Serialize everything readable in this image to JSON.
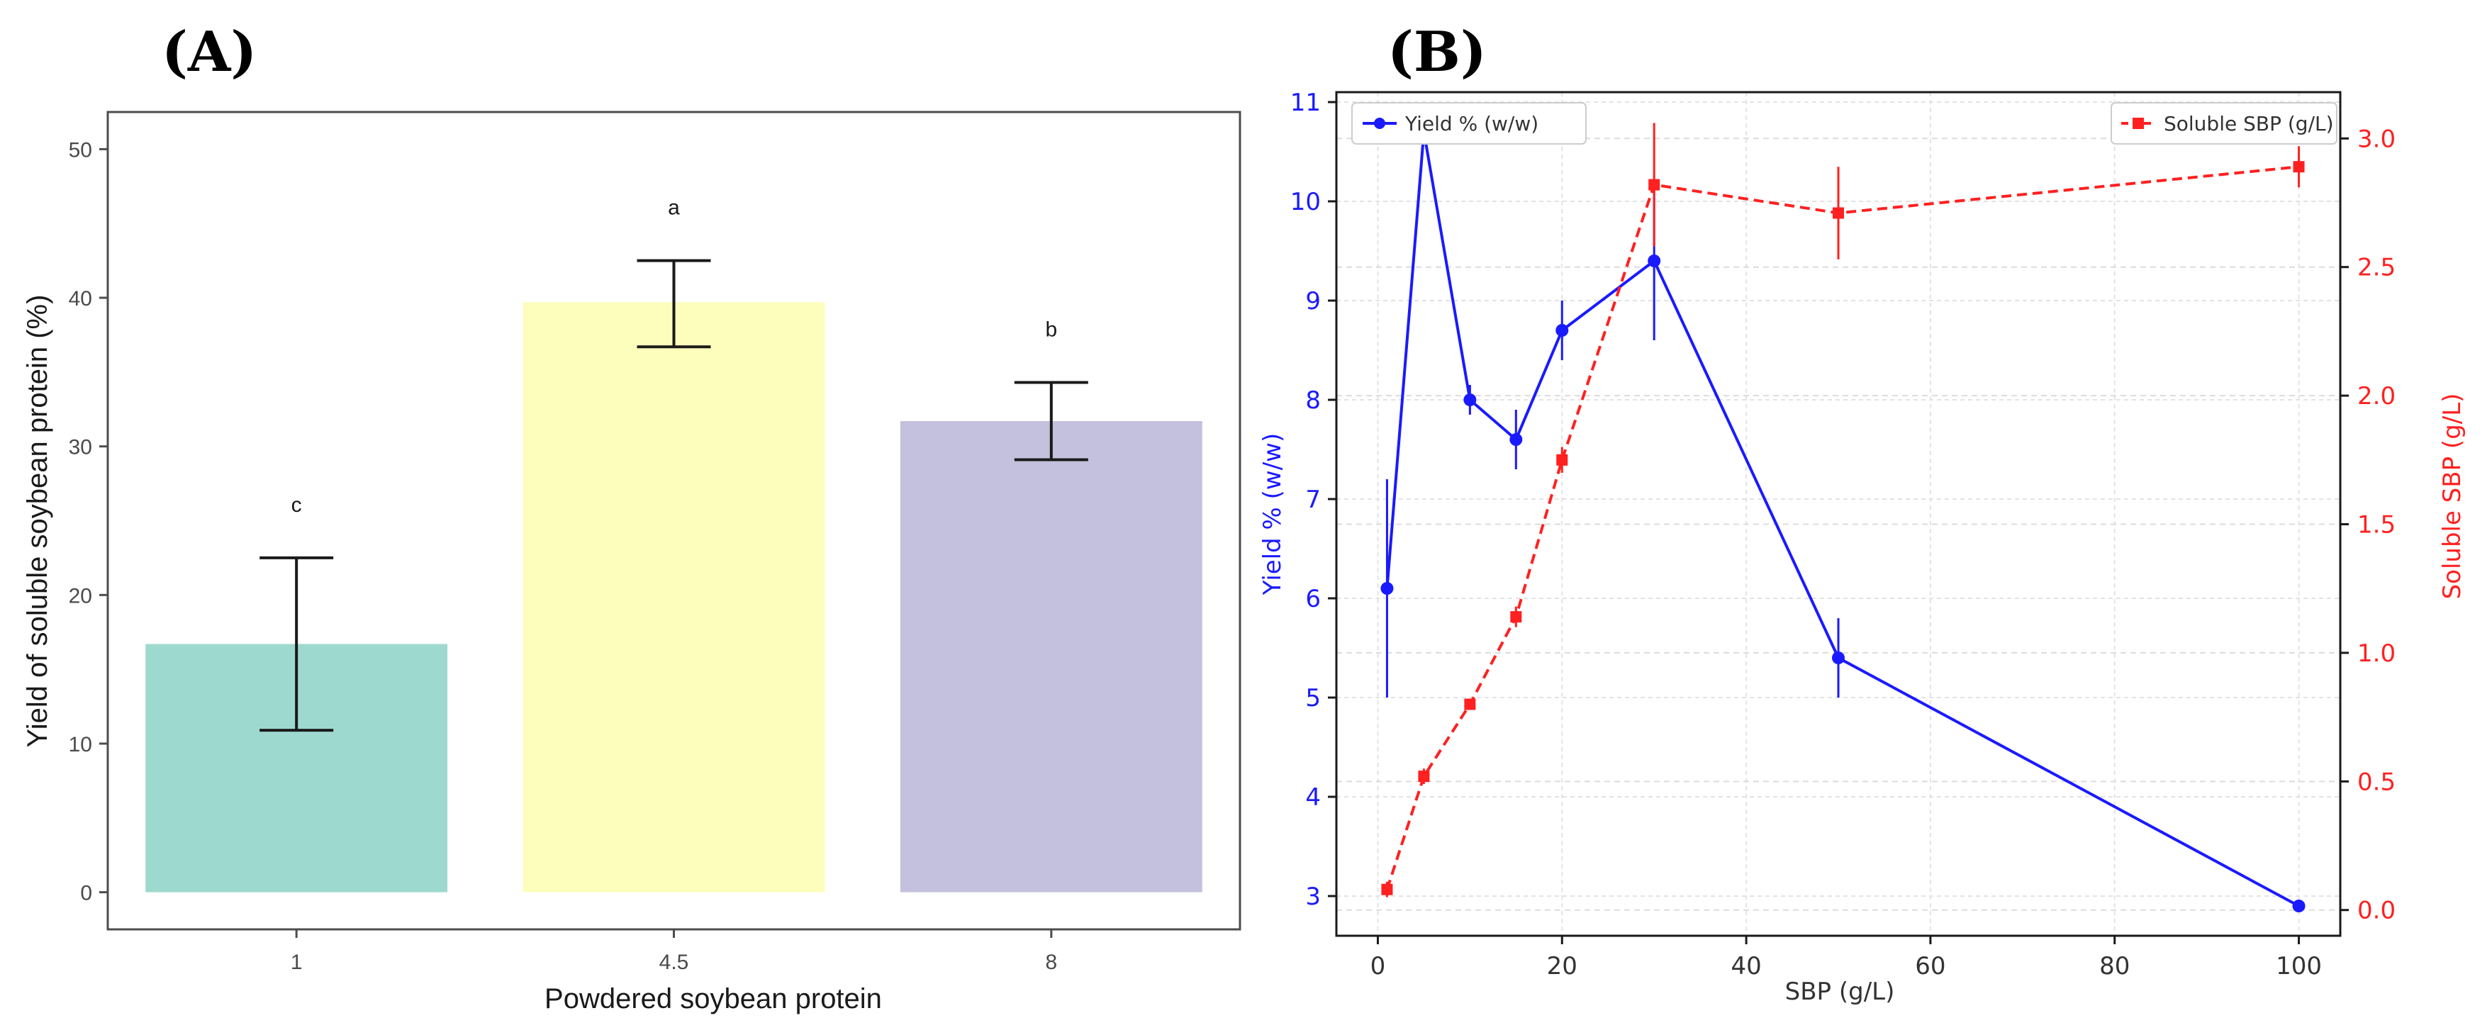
{
  "panels": {
    "a_label": "(A)",
    "b_label": "(B)"
  },
  "chart_data": [
    {
      "id": "A",
      "type": "bar",
      "title": "",
      "xlabel": "Powdered soybean protein",
      "ylabel": "Yield of soluble soybean protein (%)",
      "categories": [
        "1",
        "4.5",
        "8"
      ],
      "values": [
        16.7,
        39.7,
        31.7
      ],
      "error_low": [
        10.9,
        36.7,
        29.1
      ],
      "error_high": [
        22.5,
        42.5,
        34.3
      ],
      "letters": [
        "c",
        "a",
        "b"
      ],
      "colors": [
        "#9dd9ce",
        "#fdfdbc",
        "#c3c1dd"
      ],
      "ylim": [
        -2.5,
        52.5
      ],
      "yticks": [
        0,
        10,
        20,
        30,
        40,
        50
      ],
      "ytick_labels": [
        "0",
        "10",
        "20",
        "30",
        "40",
        "50"
      ],
      "grid": false
    },
    {
      "id": "B",
      "type": "line",
      "title": "",
      "xlabel": "SBP (g/L)",
      "xlim": [
        -4.5,
        104.5
      ],
      "xticks": [
        0,
        20,
        40,
        60,
        80,
        100
      ],
      "xtick_labels": [
        "0",
        "20",
        "40",
        "60",
        "80",
        "100"
      ],
      "grid": true,
      "series": [
        {
          "name": "Yield % (w/w)",
          "axis": "left",
          "color": "#1a1aff",
          "style": "solid",
          "marker": "circle",
          "x": [
            1,
            5,
            10,
            15,
            20,
            30,
            50,
            100
          ],
          "y": [
            6.1,
            10.7,
            8.0,
            7.6,
            8.7,
            9.4,
            5.4,
            2.9
          ],
          "err": [
            1.1,
            0.1,
            0.15,
            0.3,
            0.3,
            0.8,
            0.4,
            0.05
          ]
        },
        {
          "name": "Soluble SBP (g/L)",
          "axis": "right",
          "color": "#ff2020",
          "style": "dashed",
          "marker": "square",
          "x": [
            1,
            5,
            10,
            15,
            20,
            30,
            50,
            100
          ],
          "y": [
            0.08,
            0.52,
            0.8,
            1.14,
            1.75,
            2.82,
            2.71,
            2.89
          ],
          "err": [
            0.03,
            0.03,
            0.02,
            0.04,
            0.05,
            0.24,
            0.18,
            0.08
          ]
        }
      ],
      "ylabel_left": "Yield % (w/w)",
      "ylim_left": [
        2.6,
        11.1
      ],
      "yticks_left": [
        3,
        4,
        5,
        6,
        7,
        8,
        9,
        10,
        11
      ],
      "ytick_labels_left": [
        "3",
        "4",
        "5",
        "6",
        "7",
        "8",
        "9",
        "10",
        "11"
      ],
      "ylabel_right": "Soluble SBP (g/L)",
      "ylim_right": [
        -0.1,
        3.18
      ],
      "yticks_right": [
        0.0,
        0.5,
        1.0,
        1.5,
        2.0,
        2.5,
        3.0
      ],
      "ytick_labels_right": [
        "0.0",
        "0.5",
        "1.0",
        "1.5",
        "2.0",
        "2.5",
        "3.0"
      ],
      "legend": [
        {
          "label": "Yield % (w/w)",
          "placement": "top-left"
        },
        {
          "label": "Soluble SBP (g/L)",
          "placement": "top-right"
        }
      ]
    }
  ]
}
